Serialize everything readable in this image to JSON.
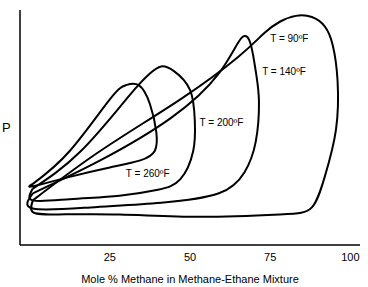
{
  "chart_data": {
    "type": "line",
    "x_label": "Mole % Methane in Methane-Ethane Mixture",
    "y_label": "P",
    "xlim": [
      -3,
      103
    ],
    "xticks": [
      25,
      50,
      75,
      100
    ],
    "ylim": [
      0,
      100
    ],
    "tick_labels": "x",
    "grid": false,
    "series": [
      {
        "name": "T = 90ºF",
        "color": "#000000",
        "x": [
          1,
          22,
          47,
          65,
          73,
          78,
          83,
          88,
          92,
          94.5,
          96,
          95.5,
          92,
          88,
          78,
          53,
          28,
          9,
          1,
          1
        ],
        "values": [
          19,
          40,
          62,
          80,
          90,
          95,
          97.5,
          97,
          93,
          85,
          70,
          49,
          29,
          16,
          13,
          12,
          13,
          13,
          14,
          19
        ]
      },
      {
        "name": "T = 140ºF",
        "color": "#000000",
        "x": [
          1,
          22,
          44,
          59,
          66,
          69,
          70.6,
          71.5,
          70.5,
          67,
          59,
          41,
          19,
          1,
          1
        ],
        "values": [
          22,
          36,
          54,
          73,
          88,
          85,
          73,
          61,
          44,
          31,
          22,
          18,
          16,
          15.5,
          22
        ]
      },
      {
        "name": "T = 200ºF",
        "color": "#000000",
        "x": [
          1,
          16,
          31,
          37.5,
          41,
          45,
          50,
          51.5,
          51,
          47,
          40,
          28,
          12.5,
          1,
          1
        ],
        "values": [
          24,
          40,
          63.5,
          73,
          76,
          74,
          66,
          53,
          40,
          28,
          23.5,
          21,
          19.5,
          19,
          24
        ]
      },
      {
        "name": "T = 260ºF",
        "color": "#000000",
        "x": [
          1,
          12.5,
          25,
          30,
          34,
          37.5,
          39.5,
          39,
          34.5,
          25,
          12.5,
          1,
          1
        ],
        "values": [
          26,
          40,
          62,
          68,
          68,
          60,
          48,
          40,
          36,
          33,
          29,
          25,
          26
        ]
      }
    ]
  }
}
